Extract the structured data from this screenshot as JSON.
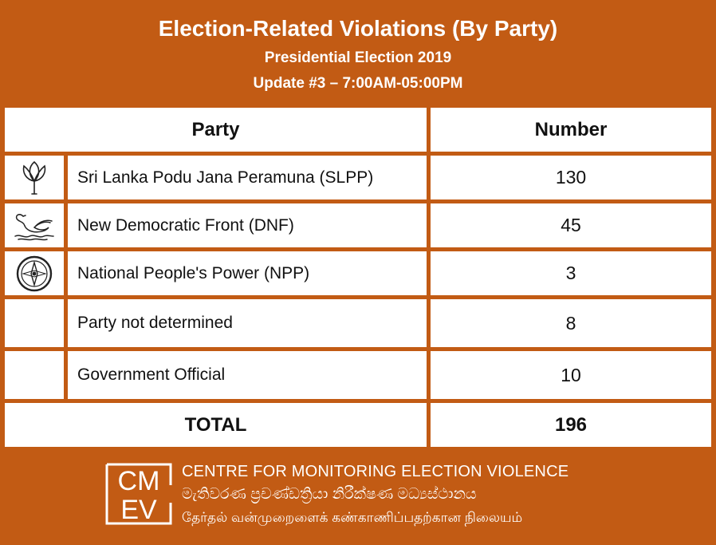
{
  "header": {
    "title": "Election-Related Violations (By Party)",
    "subtitle": "Presidential Election 2019",
    "update": "Update #3 – 7:00AM-05:00PM"
  },
  "table": {
    "columns": [
      "Party",
      "Number"
    ],
    "rows": [
      {
        "icon": "lotus-bud-icon",
        "party": "Sri Lanka Podu Jana Peramuna (SLPP)",
        "number": "130"
      },
      {
        "icon": "swan-icon",
        "party": "New Democratic Front (DNF)",
        "number": "45"
      },
      {
        "icon": "compass-icon",
        "party": "National People's Power (NPP)",
        "number": "3"
      },
      {
        "icon": "",
        "party": "Party not determined",
        "number": "8"
      },
      {
        "icon": "",
        "party": "Government Official",
        "number": "10"
      }
    ],
    "total_label": "TOTAL",
    "total_value": "196"
  },
  "footer": {
    "logo_text": "CMEV",
    "logo_top": "CM",
    "logo_bottom": "EV",
    "org_en": "CENTRE FOR MONITORING ELECTION VIOLENCE",
    "org_si": "මැතිවරණ ප්‍රචණ්ඩත්‍රියා නිරීක්ෂණ මධ්‍යස්ථානය",
    "org_ta": "தேர்தல் வன்முறைளைக் கண்காணிப்பதற்கான நிலையம்"
  },
  "colors": {
    "background": "#c25b14",
    "cell": "#ffffff",
    "text": "#111111"
  }
}
